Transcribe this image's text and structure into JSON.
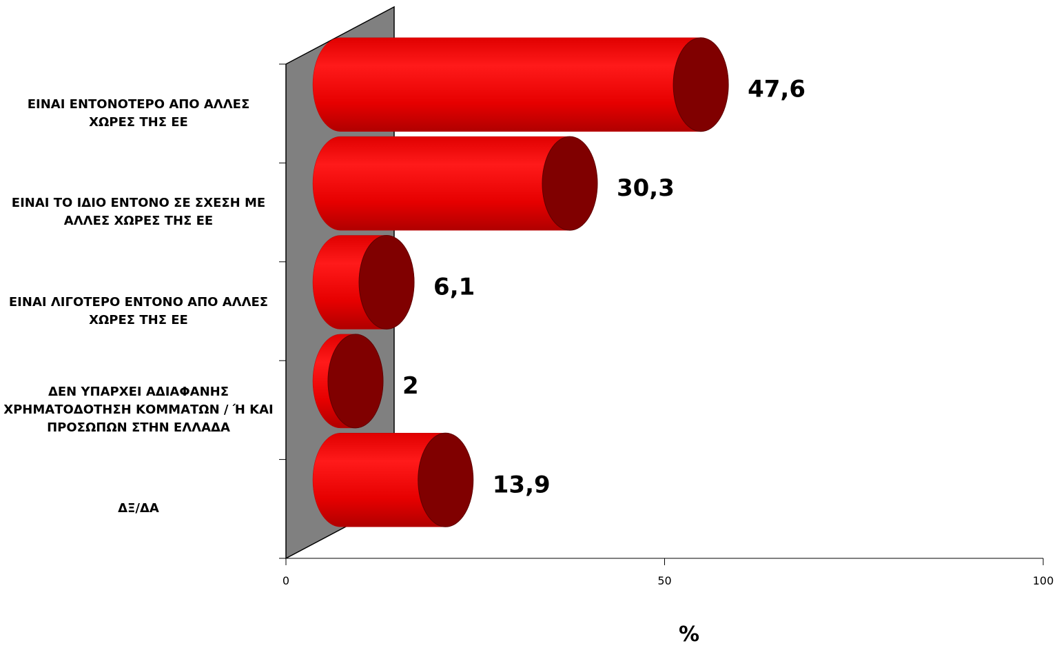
{
  "chart_data": {
    "type": "bar3d-cylinder",
    "categories": [
      "ΕΙΝΑΙ ΕΝΤΟΝΟΤΕΡΟ ΑΠΟ ΑΛΛΕΣ ΧΩΡΕΣ ΤΗΣ ΕΕ",
      "ΕΙΝΑΙ ΤΟ ΙΔΙΟ ΕΝΤΟΝΟ ΣΕ ΣΧΕΣΗ ΜΕ ΑΛΛΕΣ ΧΩΡΕΣ ΤΗΣ ΕΕ",
      "ΕΙΝΑΙ ΛΙΓΟΤΕΡΟ ΕΝΤΟΝΟ ΑΠΟ ΑΛΛΕΣ ΧΩΡΕΣ ΤΗΣ ΕΕ",
      "ΔΕΝ ΥΠΑΡΧΕΙ ΑΔΙΑΦΑΝΗΣ ΧΡΗΜΑΤΟΔΟΤΗΣΗ ΚΟΜΜΑΤΩΝ / Ή ΚΑΙ ΠΡΟΣΩΠΩΝ ΣΤΗΝ ΕΛΛΑΔΑ",
      "ΔΞ/ΔΑ"
    ],
    "values": [
      47.6,
      30.3,
      6.1,
      2,
      13.9
    ],
    "value_labels": [
      "47,6",
      "30,3",
      "6,1",
      "2",
      "13,9"
    ],
    "color": "#ff0000",
    "end_color": "#800000",
    "xlim": [
      0,
      100
    ],
    "xticks": [
      0,
      50,
      100
    ],
    "xlabel": "%"
  }
}
